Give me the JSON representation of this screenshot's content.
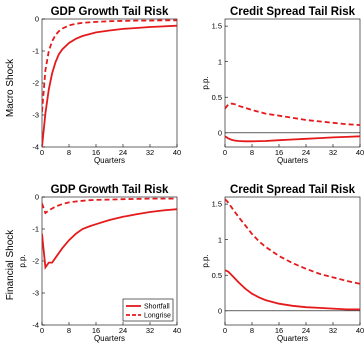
{
  "row_labels": [
    "Macro Shock",
    "Financial Shock"
  ],
  "legend": [
    {
      "name": "Shortfall",
      "color": "#e41a1c",
      "dash": "solid"
    },
    {
      "name": "Longrise",
      "color": "#e41a1c",
      "dash": "dashed"
    }
  ],
  "chart_data": [
    {
      "type": "line",
      "title": "GDP Growth Tail Risk",
      "row_label": "Macro Shock",
      "xlabel": "Quarters",
      "ylabel": "",
      "xlim": [
        0,
        40
      ],
      "ylim": [
        -4,
        0
      ],
      "xticks": [
        0,
        8,
        16,
        24,
        32,
        40
      ],
      "yticks": [
        -4,
        -3,
        -2,
        -1,
        0
      ],
      "zero_line": false,
      "legend": false,
      "x": [
        0,
        1,
        2,
        3,
        4,
        5,
        6,
        8,
        10,
        12,
        16,
        20,
        24,
        28,
        32,
        36,
        40
      ],
      "series": [
        {
          "name": "Shortfall",
          "color": "#e41a1c",
          "dash": "solid",
          "values": [
            -4.0,
            -2.95,
            -2.2,
            -1.7,
            -1.35,
            -1.1,
            -0.95,
            -0.75,
            -0.62,
            -0.53,
            -0.42,
            -0.36,
            -0.31,
            -0.28,
            -0.25,
            -0.23,
            -0.21
          ]
        },
        {
          "name": "Longrise",
          "color": "#e41a1c",
          "dash": "dashed",
          "values": [
            -2.9,
            -1.6,
            -1.0,
            -0.7,
            -0.5,
            -0.38,
            -0.3,
            -0.2,
            -0.15,
            -0.12,
            -0.09,
            -0.07,
            -0.06,
            -0.05,
            -0.05,
            -0.04,
            -0.04
          ]
        }
      ]
    },
    {
      "type": "line",
      "title": "Credit Spread Tail Risk",
      "row_label": "Macro Shock",
      "xlabel": "Quarters",
      "ylabel": "p.p.",
      "xlim": [
        0,
        40
      ],
      "ylim": [
        -0.2,
        1.6
      ],
      "xticks": [
        0,
        8,
        16,
        24,
        32,
        40
      ],
      "yticks": [
        0,
        0.5,
        1,
        1.5
      ],
      "ytick_labels": [
        "0",
        "0.5",
        "1",
        "1.5"
      ],
      "zero_line": true,
      "legend": false,
      "x": [
        0,
        1,
        2,
        3,
        4,
        6,
        8,
        12,
        16,
        20,
        24,
        28,
        32,
        36,
        40
      ],
      "series": [
        {
          "name": "Shortfall",
          "color": "#e41a1c",
          "dash": "solid",
          "values": [
            -0.05,
            -0.08,
            -0.1,
            -0.11,
            -0.115,
            -0.12,
            -0.12,
            -0.115,
            -0.105,
            -0.095,
            -0.085,
            -0.075,
            -0.065,
            -0.058,
            -0.05
          ]
        },
        {
          "name": "Longrise",
          "color": "#e41a1c",
          "dash": "dashed",
          "values": [
            0.34,
            0.4,
            0.41,
            0.4,
            0.38,
            0.35,
            0.32,
            0.27,
            0.24,
            0.21,
            0.18,
            0.16,
            0.14,
            0.12,
            0.11
          ]
        }
      ]
    },
    {
      "type": "line",
      "title": "GDP Growth Tail Risk",
      "row_label": "Financial Shock",
      "xlabel": "Quarters",
      "ylabel": "p.p.",
      "xlim": [
        0,
        40
      ],
      "ylim": [
        -4,
        0
      ],
      "xticks": [
        0,
        8,
        16,
        24,
        32,
        40
      ],
      "yticks": [
        -4,
        -3,
        -2,
        -1,
        0
      ],
      "zero_line": false,
      "legend": true,
      "legend_position": "bottom-right",
      "x": [
        0,
        1,
        2,
        3,
        4,
        6,
        8,
        10,
        12,
        14,
        16,
        20,
        24,
        28,
        32,
        36,
        40
      ],
      "series": [
        {
          "name": "Shortfall",
          "color": "#e41a1c",
          "dash": "solid",
          "values": [
            -1.15,
            -2.2,
            -2.05,
            -2.05,
            -1.9,
            -1.6,
            -1.35,
            -1.15,
            -1.0,
            -0.92,
            -0.85,
            -0.72,
            -0.62,
            -0.54,
            -0.47,
            -0.42,
            -0.38
          ]
        },
        {
          "name": "Longrise",
          "color": "#e41a1c",
          "dash": "dashed",
          "values": [
            -0.2,
            -0.5,
            -0.42,
            -0.36,
            -0.3,
            -0.22,
            -0.17,
            -0.14,
            -0.12,
            -0.1,
            -0.09,
            -0.08,
            -0.07,
            -0.06,
            -0.05,
            -0.05,
            -0.05
          ]
        }
      ]
    },
    {
      "type": "line",
      "title": "Credit Spread Tail Risk",
      "row_label": "Financial Shock",
      "xlabel": "Quarters",
      "ylabel": "p.p.",
      "xlim": [
        0,
        40
      ],
      "ylim": [
        -0.2,
        1.6
      ],
      "xticks": [
        0,
        8,
        16,
        24,
        32,
        40
      ],
      "yticks": [
        0,
        0.5,
        1,
        1.5
      ],
      "ytick_labels": [
        "0",
        "0.5",
        "1",
        "1.5"
      ],
      "zero_line": true,
      "legend": false,
      "x": [
        0,
        1,
        2,
        4,
        6,
        8,
        10,
        12,
        16,
        20,
        24,
        28,
        32,
        36,
        40
      ],
      "series": [
        {
          "name": "Shortfall",
          "color": "#e41a1c",
          "dash": "solid",
          "values": [
            0.57,
            0.55,
            0.5,
            0.4,
            0.31,
            0.24,
            0.19,
            0.15,
            0.1,
            0.07,
            0.05,
            0.04,
            0.03,
            0.02,
            0.02
          ]
        },
        {
          "name": "Longrise",
          "color": "#e41a1c",
          "dash": "dashed",
          "values": [
            1.57,
            1.52,
            1.45,
            1.32,
            1.2,
            1.08,
            0.98,
            0.9,
            0.77,
            0.67,
            0.59,
            0.52,
            0.47,
            0.42,
            0.38
          ]
        }
      ]
    }
  ]
}
